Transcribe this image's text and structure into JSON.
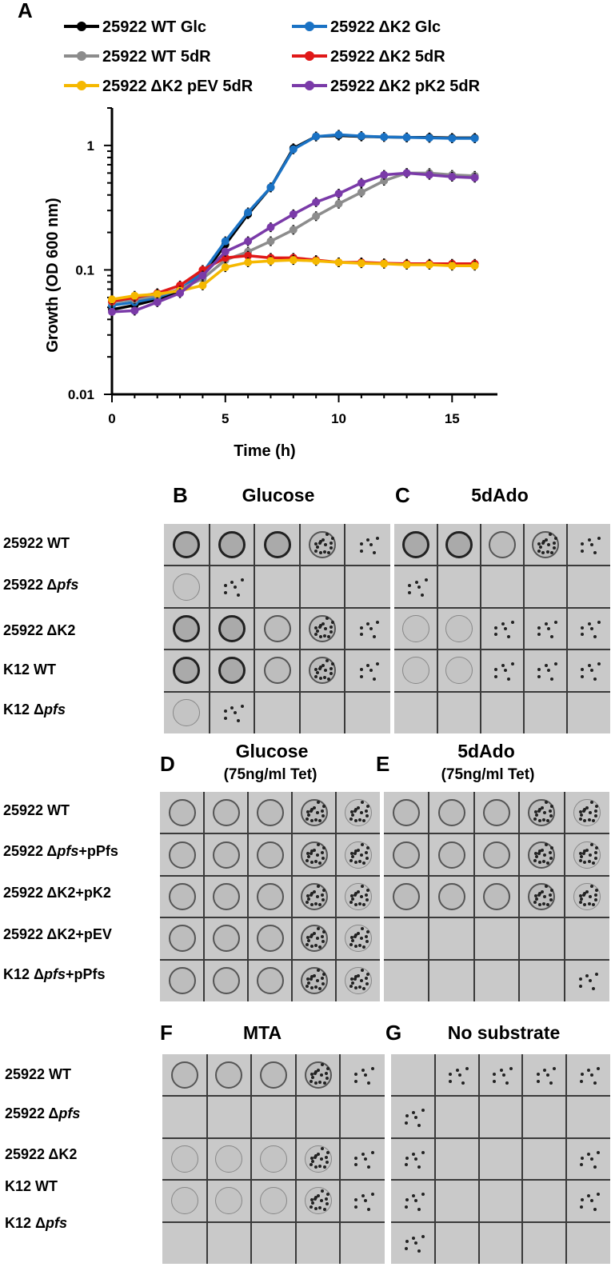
{
  "panel_a": {
    "letter": "A"
  },
  "chart_data": {
    "type": "line",
    "ylabel": "Growth (OD 600 nm)",
    "xlabel": "Time (h)",
    "yscale": "log",
    "ylim": [
      0.01,
      2
    ],
    "xlim": [
      0,
      17
    ],
    "xticks": [
      "0",
      "5",
      "10",
      "15"
    ],
    "yticks": [
      "0.01",
      "0.1",
      "1"
    ],
    "legend_position": "top",
    "x": [
      0,
      1,
      2,
      3,
      4,
      5,
      6,
      7,
      8,
      9,
      10,
      11,
      12,
      13,
      14,
      15,
      16
    ],
    "series": [
      {
        "name": "25922 WT Glc",
        "color": "#000000",
        "values": [
          0.048,
          0.052,
          0.058,
          0.068,
          0.09,
          0.16,
          0.28,
          0.46,
          0.95,
          1.18,
          1.2,
          1.18,
          1.17,
          1.16,
          1.16,
          1.15,
          1.15
        ]
      },
      {
        "name": "25922 ΔK2 Glc",
        "color": "#1a72c4",
        "values": [
          0.052,
          0.055,
          0.06,
          0.07,
          0.095,
          0.17,
          0.29,
          0.46,
          0.93,
          1.18,
          1.22,
          1.19,
          1.17,
          1.16,
          1.15,
          1.14,
          1.14
        ]
      },
      {
        "name": "25922 WT 5dR",
        "color": "#8c8c8c",
        "values": [
          0.055,
          0.058,
          0.062,
          0.07,
          0.085,
          0.12,
          0.14,
          0.17,
          0.21,
          0.27,
          0.34,
          0.42,
          0.52,
          0.6,
          0.6,
          0.58,
          0.57
        ]
      },
      {
        "name": "25922 ΔK2 5dR",
        "color": "#e01818",
        "values": [
          0.056,
          0.06,
          0.065,
          0.075,
          0.1,
          0.125,
          0.13,
          0.125,
          0.125,
          0.12,
          0.115,
          0.115,
          0.113,
          0.112,
          0.112,
          0.112,
          0.112
        ]
      },
      {
        "name": "25922 ΔK2 pEV 5dR",
        "color": "#f5b800",
        "values": [
          0.058,
          0.062,
          0.064,
          0.068,
          0.075,
          0.105,
          0.115,
          0.118,
          0.12,
          0.118,
          0.115,
          0.113,
          0.112,
          0.11,
          0.11,
          0.108,
          0.108
        ]
      },
      {
        "name": "25922 ΔK2 pK2 5dR",
        "color": "#7a3aa8",
        "values": [
          0.046,
          0.047,
          0.055,
          0.065,
          0.09,
          0.14,
          0.17,
          0.22,
          0.28,
          0.35,
          0.41,
          0.5,
          0.58,
          0.6,
          0.58,
          0.56,
          0.55
        ]
      }
    ]
  },
  "panels": [
    {
      "letter": "B",
      "title": "Glucose",
      "subtitle": ""
    },
    {
      "letter": "C",
      "title": "5dAdo",
      "subtitle": ""
    },
    {
      "letter": "D",
      "title": "Glucose",
      "subtitle": "(75ng/ml Tet)"
    },
    {
      "letter": "E",
      "title": "5dAdo",
      "subtitle": "(75ng/ml Tet)"
    },
    {
      "letter": "F",
      "title": "MTA",
      "subtitle": ""
    },
    {
      "letter": "G",
      "title": "No substrate",
      "subtitle": ""
    }
  ],
  "rows_bc": [
    {
      "prefix": "25922 WT",
      "italic": "",
      "suffix": ""
    },
    {
      "prefix": "25922 Δ",
      "italic": "pfs",
      "suffix": ""
    },
    {
      "prefix": "25922 ΔK2",
      "italic": "",
      "suffix": ""
    },
    {
      "prefix": "K12 WT",
      "italic": "",
      "suffix": ""
    },
    {
      "prefix": "K12 Δ",
      "italic": "pfs",
      "suffix": ""
    }
  ],
  "rows_de": [
    {
      "prefix": "25922 WT",
      "italic": "",
      "suffix": ""
    },
    {
      "prefix": "25922 Δ",
      "italic": "pfs",
      "suffix": "+pPfs"
    },
    {
      "prefix": "25922 ΔK2+pK2",
      "italic": "",
      "suffix": ""
    },
    {
      "prefix": "25922 ΔK2+pEV",
      "italic": "",
      "suffix": ""
    },
    {
      "prefix": "K12 Δ",
      "italic": "pfs",
      "suffix": "+pPfs"
    }
  ],
  "rows_fg": [
    {
      "prefix": "25922 WT",
      "italic": "",
      "suffix": ""
    },
    {
      "prefix": "25922 Δ",
      "italic": "pfs",
      "suffix": ""
    },
    {
      "prefix": "25922 ΔK2",
      "italic": "",
      "suffix": ""
    },
    {
      "prefix": "K12 WT",
      "italic": "",
      "suffix": ""
    },
    {
      "prefix": "K12 Δ",
      "italic": "pfs",
      "suffix": ""
    }
  ],
  "plates": {
    "B": [
      [
        4,
        4,
        4,
        3,
        1
      ],
      [
        2,
        1,
        0,
        0,
        0
      ],
      [
        4,
        4,
        3,
        3,
        1
      ],
      [
        4,
        4,
        3,
        3,
        1
      ],
      [
        2,
        1,
        0,
        0,
        0
      ]
    ],
    "C": [
      [
        4,
        4,
        3,
        3,
        1
      ],
      [
        1,
        0,
        0,
        0,
        0
      ],
      [
        2,
        2,
        1,
        1,
        1
      ],
      [
        2,
        2,
        1,
        1,
        1
      ],
      [
        0,
        0,
        0,
        0,
        0
      ]
    ],
    "D": [
      [
        3,
        3,
        3,
        3,
        2
      ],
      [
        3,
        3,
        3,
        3,
        2
      ],
      [
        3,
        3,
        3,
        3,
        2
      ],
      [
        3,
        3,
        3,
        3,
        2
      ],
      [
        3,
        3,
        3,
        3,
        2
      ]
    ],
    "E": [
      [
        3,
        3,
        3,
        3,
        2
      ],
      [
        3,
        3,
        3,
        3,
        2
      ],
      [
        3,
        3,
        3,
        3,
        2
      ],
      [
        0,
        0,
        0,
        0,
        0
      ],
      [
        0,
        0,
        0,
        0,
        1
      ]
    ],
    "F": [
      [
        3,
        3,
        3,
        3,
        1
      ],
      [
        0,
        0,
        0,
        0,
        0
      ],
      [
        2,
        2,
        2,
        2,
        1
      ],
      [
        2,
        2,
        2,
        2,
        1
      ],
      [
        0,
        0,
        0,
        0,
        0
      ]
    ],
    "G": [
      [
        0,
        1,
        1,
        1,
        1
      ],
      [
        1,
        0,
        0,
        0,
        0
      ],
      [
        1,
        0,
        0,
        0,
        1
      ],
      [
        1,
        0,
        0,
        0,
        1
      ],
      [
        1,
        0,
        0,
        0,
        0
      ]
    ]
  }
}
